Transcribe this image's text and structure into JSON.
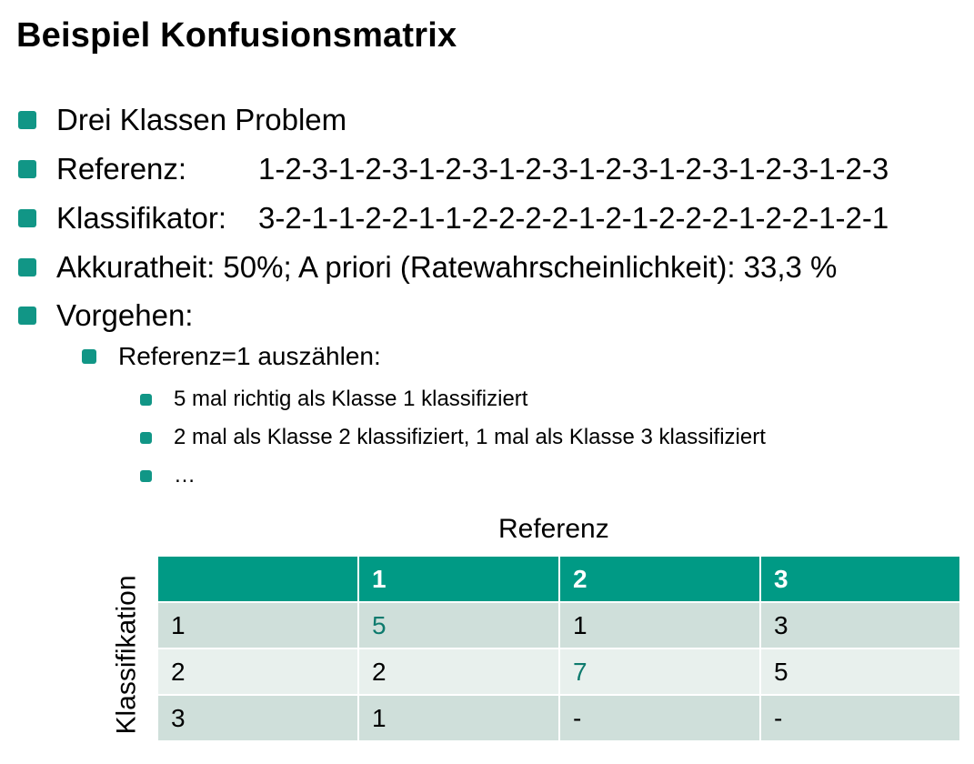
{
  "title": "Beispiel Konfusionsmatrix",
  "bullets": {
    "problem": "Drei Klassen Problem",
    "referenz_label": "Referenz:",
    "referenz_value": "1-2-3-1-2-3-1-2-3-1-2-3-1-2-3-1-2-3-1-2-3-1-2-3",
    "klassifikator_label": "Klassifikator:",
    "klassifikator_value": "3-2-1-1-2-2-1-1-2-2-2-2-1-2-1-2-2-2-1-2-2-1-2-1",
    "akkuratheit": "Akkuratheit: 50%; A priori (Ratewahrscheinlichkeit): 33,3 %",
    "vorgehen": "Vorgehen:",
    "sub": "Referenz=1 auszählen:",
    "subsub": [
      "5 mal richtig als Klasse 1 klassifiziert",
      "2 mal als Klasse 2 klassifiziert, 1 mal als Klasse 3 klassifiziert",
      "…"
    ]
  },
  "table": {
    "column_axis_label": "Referenz",
    "row_axis_label": "Klassifikation",
    "header": [
      "",
      "1",
      "2",
      "3"
    ],
    "rows": [
      [
        "1",
        "5",
        "1",
        "3"
      ],
      [
        "2",
        "2",
        "7",
        "5"
      ],
      [
        "3",
        "1",
        "-",
        "-"
      ]
    ]
  },
  "colors": {
    "accent": "#119686",
    "header_bg": "#009a85",
    "row_dark": "#cfdfda",
    "row_light": "#e8f0ed",
    "diagonal_text": "#0e7b6e"
  }
}
